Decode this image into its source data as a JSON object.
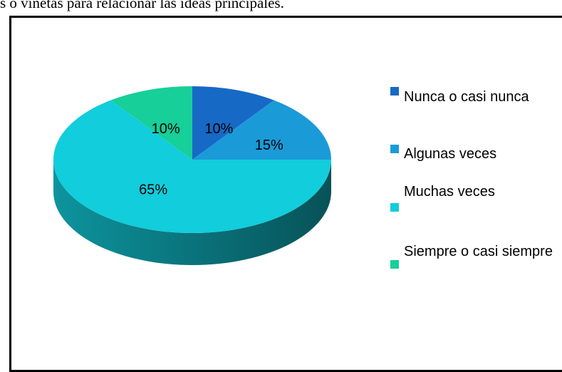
{
  "text_above": "s o viñetas para relacionar las ideas principales.",
  "chart_data": {
    "type": "pie3d",
    "categories": [
      "Nunca o casi nunca",
      "Algunas veces",
      "Muchas veces",
      "Siempre o casi siempre"
    ],
    "values": [
      10,
      15,
      65,
      10
    ],
    "value_labels": [
      "10%",
      "15%",
      "65%",
      "10%"
    ],
    "colors": [
      "#1769c6",
      "#1b9ad8",
      "#12cddb",
      "#17cf98"
    ],
    "legend": "right"
  }
}
